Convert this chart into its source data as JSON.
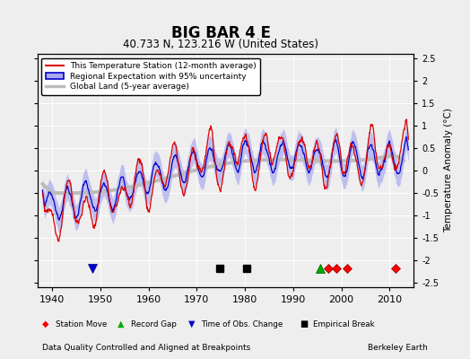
{
  "title": "BIG BAR 4 E",
  "subtitle": "40.733 N, 123.216 W (United States)",
  "ylabel": "Temperature Anomaly (°C)",
  "xlabel_note": "Data Quality Controlled and Aligned at Breakpoints",
  "credit": "Berkeley Earth",
  "xlim": [
    1937,
    2015
  ],
  "ylim": [
    -2.6,
    2.6
  ],
  "yticks": [
    -2.5,
    -2,
    -1.5,
    -1,
    -0.5,
    0,
    0.5,
    1,
    1.5,
    2,
    2.5
  ],
  "xticks": [
    1940,
    1950,
    1960,
    1970,
    1980,
    1990,
    2000,
    2010
  ],
  "bg_color": "#eeeeee",
  "plot_bg": "#eeeeee",
  "station_color": "#dd0000",
  "regional_color": "#0000cc",
  "regional_fill": "#aaaaee",
  "global_color": "#bbbbbb",
  "event_marker_y": -2.18,
  "station_moves": [
    1997.3,
    1999.0,
    2001.2,
    2011.3
  ],
  "record_gaps": [
    1995.7
  ],
  "obs_changes": [
    1948.3
  ],
  "empirical_breaks": [
    1974.8,
    1980.3
  ]
}
